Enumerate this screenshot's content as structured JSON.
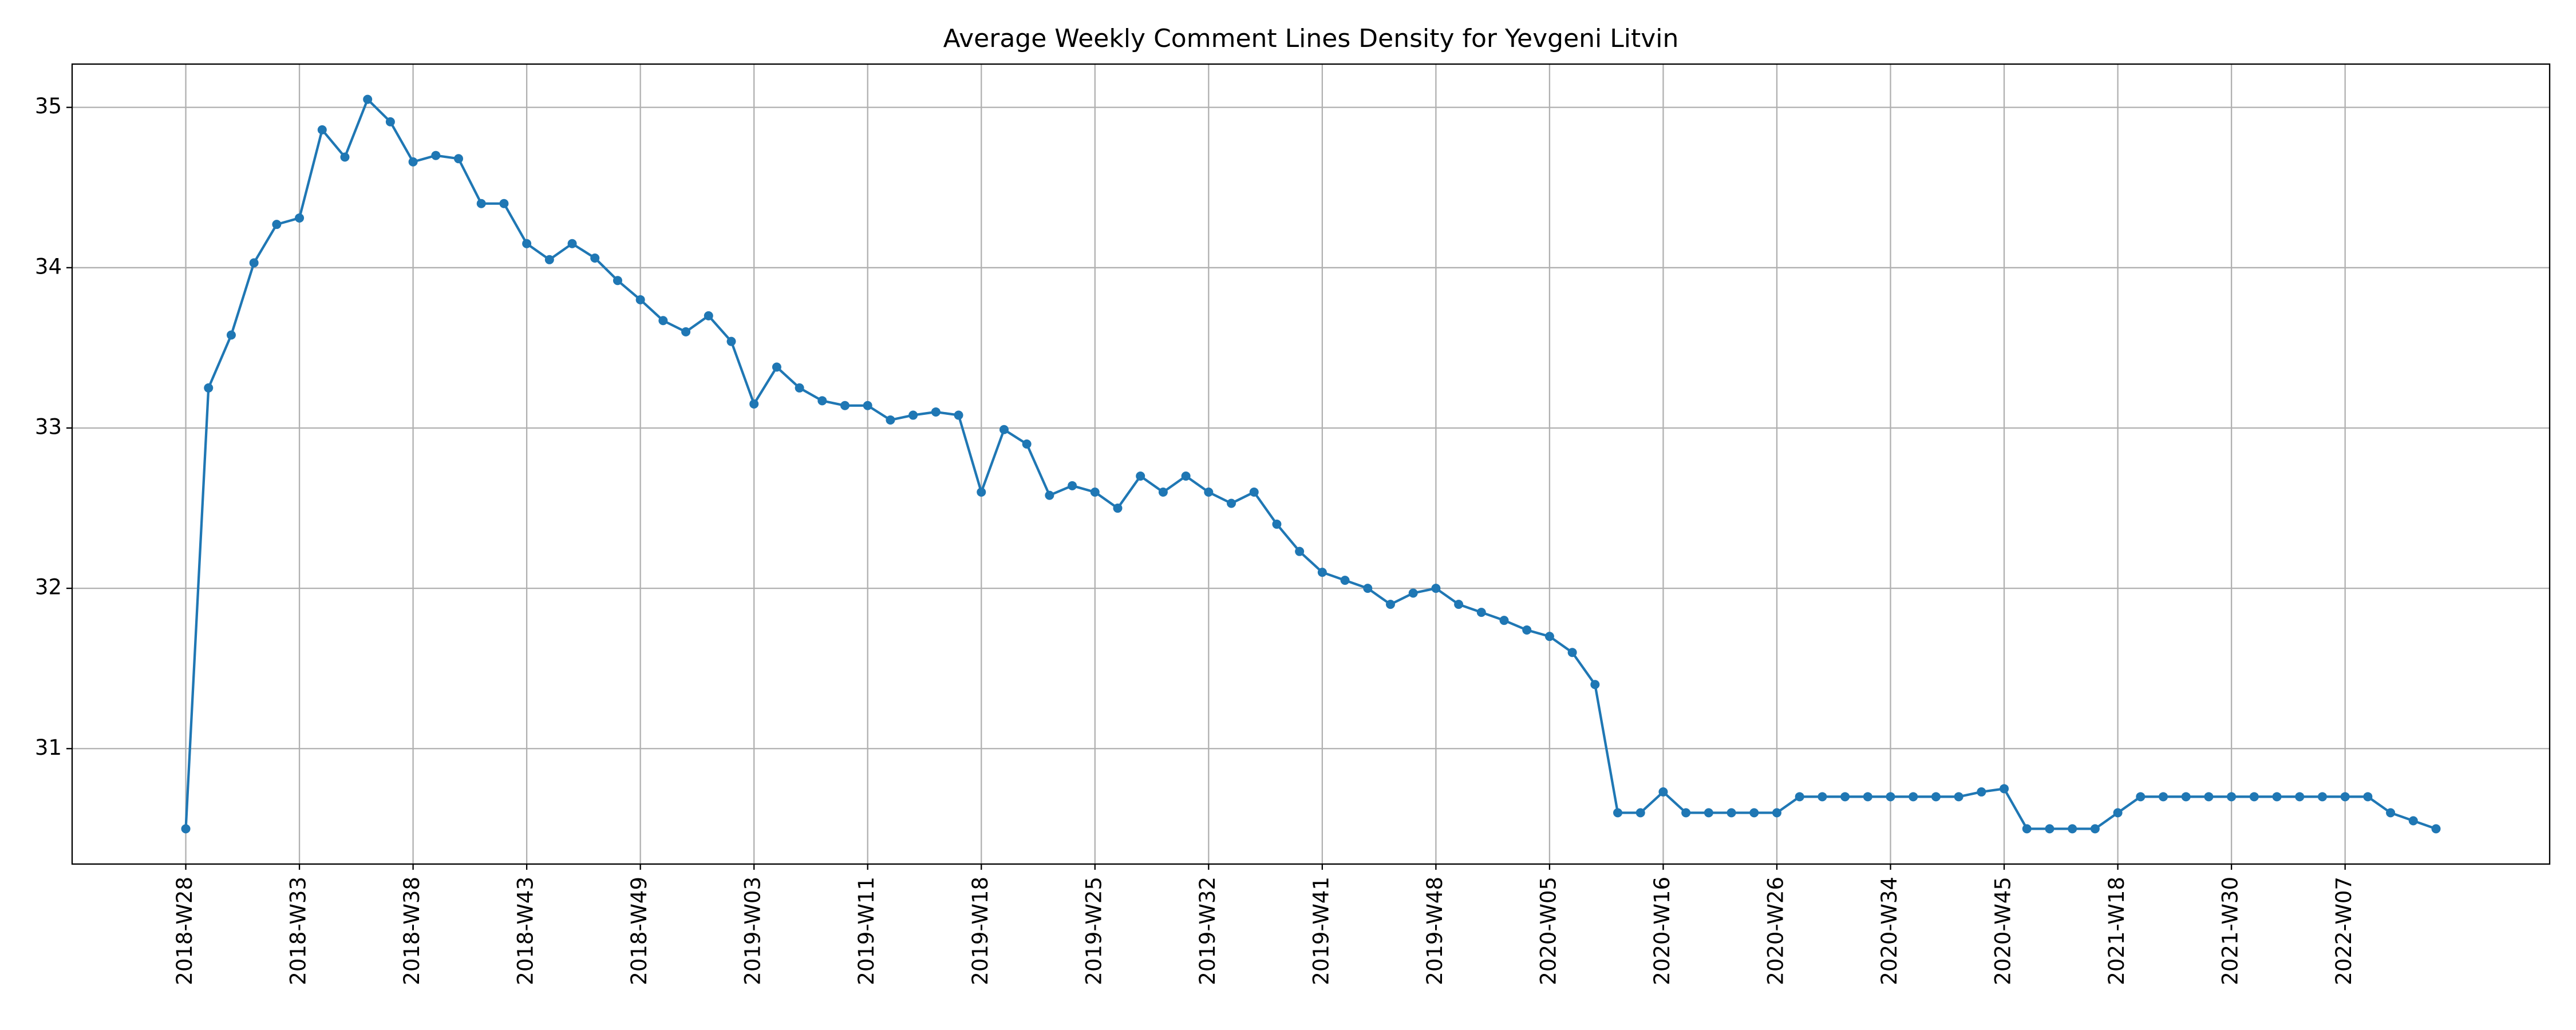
{
  "chart_data": {
    "type": "line",
    "title": "Average Weekly Comment Lines Density for Yevgeni Litvin",
    "categories": [
      "2018-W28",
      null,
      null,
      null,
      null,
      "2018-W33",
      null,
      null,
      null,
      null,
      "2018-W38",
      null,
      null,
      null,
      null,
      "2018-W43",
      null,
      null,
      null,
      null,
      "2018-W49",
      null,
      null,
      null,
      null,
      "2019-W03",
      null,
      null,
      null,
      null,
      "2019-W11",
      null,
      null,
      null,
      null,
      "2019-W18",
      null,
      null,
      null,
      null,
      "2019-W25",
      null,
      null,
      null,
      null,
      "2019-W32",
      null,
      null,
      null,
      null,
      "2019-W41",
      null,
      null,
      null,
      null,
      "2019-W48",
      null,
      null,
      null,
      null,
      "2020-W05",
      null,
      null,
      null,
      null,
      "2020-W16",
      null,
      null,
      null,
      null,
      "2020-W26",
      null,
      null,
      null,
      null,
      "2020-W34",
      null,
      null,
      null,
      null,
      "2020-W45",
      null,
      null,
      null,
      null,
      "2021-W18",
      null,
      null,
      null,
      null,
      "2021-W30",
      null,
      null,
      null,
      null,
      "2022-W07",
      null,
      null,
      null,
      null
    ],
    "series": [
      {
        "name": "Average Weekly Comment Lines Density",
        "color": "#1f77b4",
        "values": [
          30.5,
          33.25,
          33.58,
          34.03,
          34.27,
          34.31,
          34.86,
          34.69,
          35.05,
          34.91,
          34.66,
          34.7,
          34.68,
          34.4,
          34.4,
          34.15,
          34.05,
          34.15,
          34.06,
          33.92,
          33.8,
          33.67,
          33.6,
          33.7,
          33.54,
          33.15,
          33.38,
          33.25,
          33.17,
          33.14,
          33.14,
          33.05,
          33.08,
          33.1,
          33.08,
          32.6,
          32.99,
          32.9,
          32.58,
          32.64,
          32.6,
          32.5,
          32.7,
          32.6,
          32.7,
          32.6,
          32.53,
          32.6,
          32.4,
          32.23,
          32.1,
          32.05,
          32.0,
          31.9,
          31.97,
          32.0,
          31.9,
          31.85,
          31.8,
          31.74,
          31.7,
          31.6,
          31.4,
          30.6,
          30.6,
          30.73,
          30.6,
          30.6,
          30.6,
          30.6,
          30.6,
          30.7,
          30.7,
          30.7,
          30.7,
          30.7,
          30.7,
          30.7,
          30.7,
          30.73,
          30.75,
          30.5,
          30.5,
          30.5,
          30.5,
          30.6,
          30.7,
          30.7,
          30.7,
          30.7,
          30.7,
          30.7,
          30.7,
          30.7,
          30.7,
          30.7,
          30.7,
          30.6,
          30.55,
          30.5
        ]
      }
    ],
    "ylim": [
      30.28,
      35.27
    ],
    "yticks": [
      31,
      32,
      33,
      34,
      35
    ],
    "grid": true
  }
}
